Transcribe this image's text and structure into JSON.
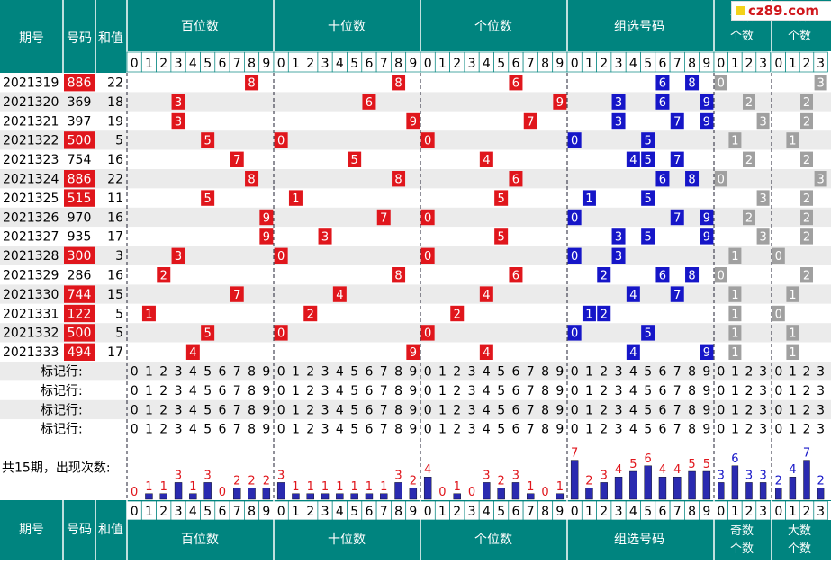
{
  "header": {
    "period": "期号",
    "number": "号码",
    "sum": "和值",
    "groups": [
      "百位数",
      "十位数",
      "个位数",
      "组选号码",
      "奇数\n个数",
      "大数\n个数"
    ]
  },
  "digits_10": [
    "0",
    "1",
    "2",
    "3",
    "4",
    "5",
    "6",
    "7",
    "8",
    "9"
  ],
  "digits_4": [
    "0",
    "1",
    "2",
    "3"
  ],
  "mark_label": "标记行:",
  "total_label": "共15期，出现次数:",
  "watermark": "cz89.com",
  "colors": {
    "teal": "#00847f",
    "red": "#e0161c",
    "blue": "#1616c8",
    "gray": "#a0a0a0",
    "bar": "#2a2ab0"
  },
  "chart_data": {
    "type": "table",
    "draws": [
      {
        "period": "2021319",
        "number": "886",
        "sum": "22",
        "hot": true,
        "odd": 0,
        "big": 3
      },
      {
        "period": "2021320",
        "number": "369",
        "sum": "18",
        "hot": false,
        "odd": 2,
        "big": 2
      },
      {
        "period": "2021321",
        "number": "397",
        "sum": "19",
        "hot": false,
        "odd": 3,
        "big": 2
      },
      {
        "period": "2021322",
        "number": "500",
        "sum": "5",
        "hot": true,
        "odd": 1,
        "big": 1
      },
      {
        "period": "2021323",
        "number": "754",
        "sum": "16",
        "hot": false,
        "odd": 2,
        "big": 2
      },
      {
        "period": "2021324",
        "number": "886",
        "sum": "22",
        "hot": true,
        "odd": 0,
        "big": 3
      },
      {
        "period": "2021325",
        "number": "515",
        "sum": "11",
        "hot": true,
        "odd": 3,
        "big": 2
      },
      {
        "period": "2021326",
        "number": "970",
        "sum": "16",
        "hot": false,
        "odd": 2,
        "big": 2
      },
      {
        "period": "2021327",
        "number": "935",
        "sum": "17",
        "hot": false,
        "odd": 3,
        "big": 2
      },
      {
        "period": "2021328",
        "number": "300",
        "sum": "3",
        "hot": true,
        "odd": 1,
        "big": 0
      },
      {
        "period": "2021329",
        "number": "286",
        "sum": "16",
        "hot": false,
        "odd": 0,
        "big": 2
      },
      {
        "period": "2021330",
        "number": "744",
        "sum": "15",
        "hot": true,
        "odd": 1,
        "big": 1
      },
      {
        "period": "2021331",
        "number": "122",
        "sum": "5",
        "hot": true,
        "odd": 1,
        "big": 0
      },
      {
        "period": "2021332",
        "number": "500",
        "sum": "5",
        "hot": true,
        "odd": 1,
        "big": 1
      },
      {
        "period": "2021333",
        "number": "494",
        "sum": "17",
        "hot": true,
        "odd": 1,
        "big": 1
      }
    ],
    "counts": {
      "hundreds": [
        0,
        1,
        1,
        3,
        1,
        3,
        0,
        2,
        2,
        2
      ],
      "tens": [
        3,
        1,
        1,
        1,
        1,
        1,
        1,
        1,
        3,
        2
      ],
      "units": [
        4,
        0,
        1,
        0,
        3,
        2,
        3,
        1,
        0,
        1
      ],
      "group": [
        7,
        2,
        3,
        4,
        5,
        6,
        4,
        4,
        5,
        5
      ],
      "odd": [
        3,
        6,
        3,
        3
      ],
      "big": [
        2,
        4,
        7,
        2
      ]
    }
  }
}
